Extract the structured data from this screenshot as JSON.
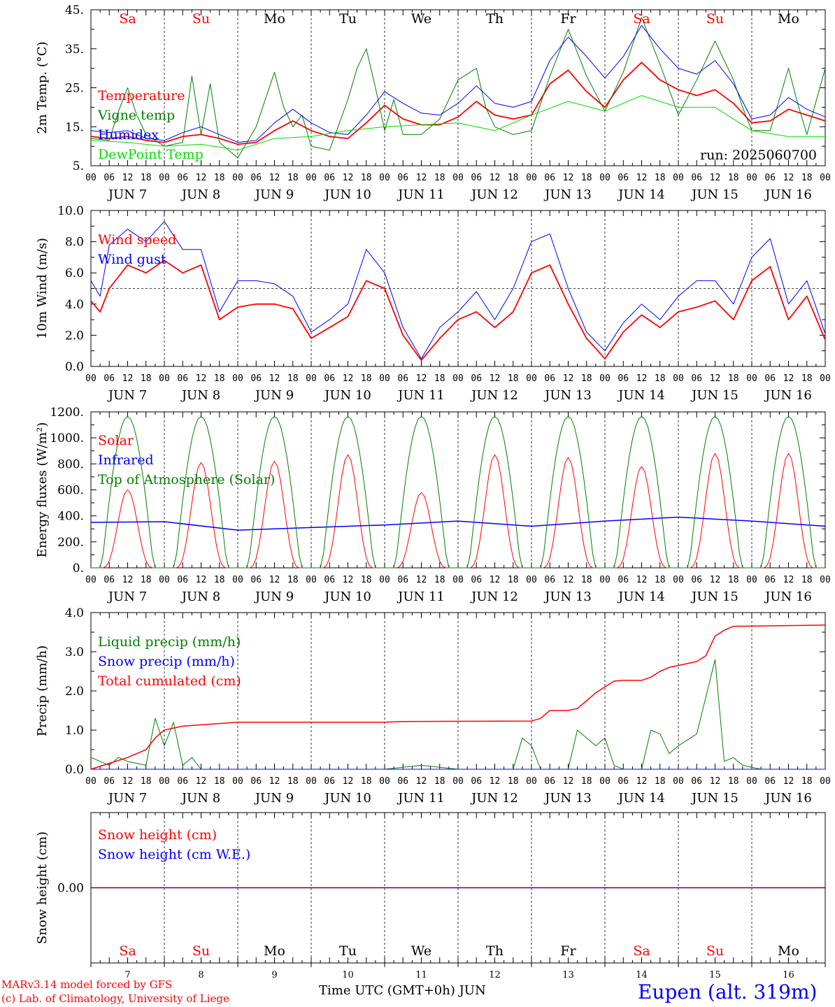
{
  "run_label": "run: 2025060700",
  "x_hour_ticks": [
    "00",
    "06",
    "12",
    "18"
  ],
  "x_end_tick": "00",
  "days": [
    {
      "dow": "Sa",
      "date": "JUN  7",
      "num": "7",
      "weekend": true
    },
    {
      "dow": "Su",
      "date": "JUN  8",
      "num": "8",
      "weekend": true
    },
    {
      "dow": "Mo",
      "date": "JUN  9",
      "num": "9",
      "weekend": false
    },
    {
      "dow": "Tu",
      "date": "JUN 10",
      "num": "10",
      "weekend": false
    },
    {
      "dow": "We",
      "date": "JUN 11",
      "num": "11",
      "weekend": false
    },
    {
      "dow": "Th",
      "date": "JUN 12",
      "num": "12",
      "weekend": false
    },
    {
      "dow": "Fr",
      "date": "JUN 13",
      "num": "13",
      "weekend": false
    },
    {
      "dow": "Sa",
      "date": "JUN 14",
      "num": "14",
      "weekend": true
    },
    {
      "dow": "Su",
      "date": "JUN 15",
      "num": "15",
      "weekend": true
    },
    {
      "dow": "Mo",
      "date": "JUN 16",
      "num": "16",
      "weekend": false
    }
  ],
  "colors": {
    "red": "#ff0000",
    "green": "#008000",
    "blue": "#0000ff",
    "lightgreen": "#00dd00",
    "axis": "#000000"
  },
  "footer": {
    "credit1": "MARv3.14 model forced by GFS",
    "credit2": "(c) Lab. of Climatology, University of Liege",
    "xlabel": "Time UTC (GMT+0h) JUN",
    "station": "Eupen (alt. 319m)"
  },
  "chart_data": [
    {
      "type": "line",
      "ylabel": "2m Temp. (°C)",
      "ylim": [
        5,
        45
      ],
      "yticks": [
        5,
        15,
        25,
        35,
        45
      ],
      "ytick_labels": [
        "5.",
        "15.",
        "25.",
        "35.",
        "45."
      ],
      "series": [
        {
          "name": "Temperature",
          "color": "red",
          "width": 1.8,
          "x": [
            0,
            6,
            12,
            18,
            24,
            30,
            36,
            42,
            48,
            54,
            60,
            66,
            72,
            78,
            84,
            90,
            96,
            102,
            108,
            114,
            120,
            126,
            132,
            138,
            144,
            150,
            156,
            162,
            168,
            174,
            180,
            186,
            192,
            198,
            204,
            210,
            216,
            222,
            228,
            234,
            240
          ],
          "y": [
            12.5,
            12,
            12.5,
            11.5,
            11,
            12.5,
            13,
            12,
            10.5,
            11,
            14,
            16.5,
            14,
            12.5,
            12,
            16,
            20.5,
            17,
            15.5,
            15.5,
            17.5,
            21.5,
            18,
            17,
            18,
            26,
            29.5,
            24,
            20,
            27,
            31.5,
            27,
            24.5,
            23,
            24.5,
            21,
            16,
            16.5,
            19.5,
            18,
            16.5
          ]
        },
        {
          "name": "Vigne temp",
          "color": "green",
          "width": 1,
          "x": [
            0,
            6,
            9,
            12,
            15,
            18,
            24,
            30,
            33,
            36,
            39,
            42,
            48,
            54,
            57,
            60,
            63,
            66,
            69,
            72,
            78,
            84,
            87,
            90,
            93,
            96,
            99,
            102,
            108,
            114,
            120,
            126,
            129,
            132,
            138,
            144,
            150,
            156,
            162,
            168,
            174,
            180,
            186,
            192,
            198,
            204,
            210,
            213,
            216,
            222,
            228,
            231,
            234,
            240
          ],
          "y": [
            12,
            11.5,
            19,
            25,
            18,
            13,
            10,
            11,
            28,
            13,
            26,
            11,
            7,
            15,
            22,
            29,
            20,
            15,
            18,
            10,
            9,
            22,
            30,
            35,
            25,
            14,
            22,
            13,
            13,
            17,
            27,
            30,
            20,
            15,
            13,
            14,
            28,
            40,
            28,
            19,
            29,
            43,
            31,
            18,
            27,
            37,
            27,
            20,
            14,
            14,
            30,
            21,
            13,
            30
          ]
        },
        {
          "name": "Humidex",
          "color": "blue",
          "width": 1,
          "x": [
            0,
            6,
            12,
            18,
            24,
            30,
            36,
            42,
            48,
            54,
            60,
            66,
            72,
            78,
            84,
            90,
            96,
            102,
            108,
            114,
            120,
            126,
            132,
            138,
            144,
            150,
            156,
            162,
            168,
            174,
            180,
            186,
            192,
            198,
            204,
            210,
            216,
            222,
            228,
            234,
            240
          ],
          "y": [
            14,
            13.5,
            14,
            12,
            11.5,
            13.5,
            15,
            13,
            11,
            11.5,
            16,
            19.5,
            16,
            13.5,
            13,
            18,
            24,
            21,
            18.5,
            18,
            21,
            25.5,
            21,
            20,
            21.5,
            32,
            38,
            33,
            27.5,
            33,
            41,
            35,
            30,
            28.5,
            32,
            26,
            17,
            18,
            22.5,
            19.5,
            17.5
          ]
        },
        {
          "name": "DewPoint Temp",
          "color": "lightgreen",
          "width": 1,
          "x": [
            0,
            12,
            24,
            36,
            48,
            60,
            72,
            84,
            96,
            108,
            120,
            132,
            144,
            156,
            168,
            180,
            192,
            204,
            216,
            228,
            240
          ],
          "y": [
            11.5,
            11,
            10,
            10.5,
            9,
            12,
            12.5,
            14,
            15,
            15.5,
            16,
            14,
            18,
            21.5,
            19,
            23,
            20,
            20,
            14,
            12.5,
            12.5
          ]
        }
      ],
      "legend": [
        "Temperature",
        "Vigne temp",
        "Humidex",
        "DewPoint Temp"
      ]
    },
    {
      "type": "line",
      "ylabel": "10m Wind (m/s)",
      "ylim": [
        0,
        10
      ],
      "yticks": [
        0,
        2,
        4,
        6,
        8,
        10
      ],
      "ytick_labels": [
        "0.0",
        "2.0",
        "4.0",
        "6.0",
        "8.0",
        "10.0"
      ],
      "reference_line": 5,
      "series": [
        {
          "name": "Wind speed",
          "color": "red",
          "width": 1.8,
          "x": [
            0,
            3,
            6,
            12,
            18,
            24,
            30,
            36,
            42,
            48,
            54,
            60,
            66,
            72,
            78,
            84,
            90,
            96,
            102,
            108,
            114,
            120,
            126,
            132,
            138,
            144,
            150,
            156,
            162,
            168,
            174,
            180,
            186,
            192,
            198,
            204,
            210,
            216,
            222,
            228,
            234,
            240
          ],
          "y": [
            4.2,
            3.5,
            5,
            6.5,
            6,
            6.8,
            6,
            6.5,
            3,
            3.8,
            4,
            4,
            3.7,
            1.8,
            2.5,
            3.2,
            5.5,
            5,
            2,
            0.4,
            1.8,
            3,
            3.5,
            2.5,
            3.5,
            6,
            6.5,
            4,
            1.8,
            0.5,
            2.2,
            3.3,
            2.5,
            3.5,
            3.8,
            4.2,
            3,
            5.5,
            6.4,
            3,
            4.5,
            1.7
          ]
        },
        {
          "name": "Wind gust",
          "color": "blue",
          "width": 1,
          "x": [
            0,
            3,
            6,
            12,
            18,
            24,
            30,
            36,
            42,
            48,
            54,
            60,
            66,
            72,
            78,
            84,
            90,
            96,
            102,
            108,
            114,
            120,
            126,
            132,
            138,
            144,
            150,
            156,
            162,
            168,
            174,
            180,
            186,
            192,
            198,
            204,
            210,
            216,
            222,
            228,
            234,
            240
          ],
          "y": [
            5.5,
            4.5,
            7.8,
            8.8,
            8,
            9.3,
            7.5,
            7.5,
            3.5,
            5.5,
            5.5,
            5.3,
            4.5,
            2.2,
            3,
            4,
            7.5,
            6,
            2.5,
            0.5,
            2.5,
            3.5,
            4.8,
            3,
            5,
            8,
            8.5,
            5,
            2.2,
            1,
            2.8,
            4,
            3,
            4.5,
            5.5,
            5.5,
            4,
            7,
            8.2,
            4,
            5.5,
            2.1
          ]
        }
      ],
      "legend": [
        "Wind speed",
        "Wind gust"
      ]
    },
    {
      "type": "line",
      "ylabel": "Energy fluxes (W/m²)",
      "ylim": [
        0,
        1200
      ],
      "yticks": [
        0,
        200,
        400,
        600,
        800,
        1000,
        1200
      ],
      "ytick_labels": [
        "0.",
        "200.",
        "400.",
        "600.",
        "800.",
        "1000.",
        "1200."
      ],
      "series": [
        {
          "name": "Solar",
          "color": "red",
          "width": 1,
          "daily_peaks": [
            600,
            810,
            820,
            870,
            580,
            870,
            850,
            780,
            880,
            880
          ]
        },
        {
          "name": "Infrared",
          "color": "blue",
          "width": 1.5,
          "x": [
            0,
            24,
            48,
            72,
            96,
            120,
            144,
            168,
            192,
            216,
            240
          ],
          "y": [
            350,
            355,
            290,
            310,
            330,
            360,
            320,
            360,
            390,
            360,
            320
          ]
        },
        {
          "name": "Top of Atmosphere (Solar)",
          "color": "green",
          "width": 1,
          "daily_peaks": [
            1165,
            1165,
            1165,
            1165,
            1165,
            1165,
            1165,
            1165,
            1165,
            1165
          ]
        }
      ],
      "legend": [
        "Solar",
        "Infrared",
        "Top of Atmosphere (Solar)"
      ]
    },
    {
      "type": "line",
      "ylabel": "Precip (mm/h)",
      "ylim": [
        0,
        4
      ],
      "yticks": [
        0,
        1,
        2,
        3,
        4
      ],
      "ytick_labels": [
        "0.0",
        "1.0",
        "2.0",
        "3.0",
        "4.0"
      ],
      "series": [
        {
          "name": "Liquid precip (mm/h)",
          "color": "green",
          "width": 1,
          "x": [
            0,
            6,
            9,
            12,
            18,
            21,
            24,
            27,
            30,
            33,
            36,
            48,
            96,
            108,
            120,
            138,
            141,
            144,
            147,
            150,
            156,
            159,
            162,
            165,
            168,
            171,
            174,
            180,
            183,
            186,
            189,
            192,
            198,
            204,
            207,
            210,
            213,
            216,
            219,
            222,
            240
          ],
          "y": [
            0.3,
            0.1,
            0.3,
            0.2,
            0.1,
            1.3,
            0.6,
            1.2,
            0.1,
            0.3,
            0,
            0,
            0,
            0.1,
            0,
            0,
            0.8,
            0.6,
            0,
            0,
            0,
            1,
            0.8,
            0.6,
            0.8,
            0.1,
            0,
            0,
            1,
            0.9,
            0.4,
            0.6,
            0.9,
            2.8,
            0.2,
            0.3,
            0.1,
            0.05,
            0,
            0,
            0
          ]
        },
        {
          "name": "Snow precip (mm/h)",
          "color": "blue",
          "width": 1,
          "x": [
            0,
            240
          ],
          "y": [
            0,
            0
          ]
        },
        {
          "name": "Total cumulated (cm)",
          "color": "red",
          "width": 1.5,
          "x": [
            0,
            12,
            18,
            21,
            24,
            30,
            48,
            96,
            102,
            144,
            147,
            150,
            156,
            159,
            162,
            165,
            168,
            171,
            174,
            180,
            183,
            186,
            189,
            192,
            198,
            201,
            204,
            207,
            210,
            240
          ],
          "y": [
            0,
            0.3,
            0.5,
            0.8,
            1,
            1.1,
            1.2,
            1.2,
            1.22,
            1.23,
            1.3,
            1.5,
            1.5,
            1.55,
            1.75,
            1.95,
            2.1,
            2.25,
            2.27,
            2.27,
            2.35,
            2.5,
            2.6,
            2.65,
            2.75,
            2.9,
            3.4,
            3.55,
            3.65,
            3.68
          ]
        }
      ],
      "legend": [
        "Liquid precip (mm/h)",
        "Snow precip (mm/h)",
        "Total cumulated (cm)"
      ]
    },
    {
      "type": "line",
      "ylabel": "Snow height (cm)",
      "ylim": [
        -1,
        1
      ],
      "yticks": [
        0
      ],
      "ytick_labels": [
        "0.00"
      ],
      "series": [
        {
          "name": "Snow height (cm)",
          "color": "red",
          "width": 1.5,
          "x": [
            0,
            240
          ],
          "y": [
            0,
            0
          ]
        },
        {
          "name": "Snow height (cm W.E.)",
          "color": "blue",
          "width": 1,
          "x": [
            0,
            240
          ],
          "y": [
            0,
            0
          ]
        }
      ],
      "legend": [
        "Snow height (cm)",
        "Snow height (cm W.E.)"
      ]
    }
  ]
}
